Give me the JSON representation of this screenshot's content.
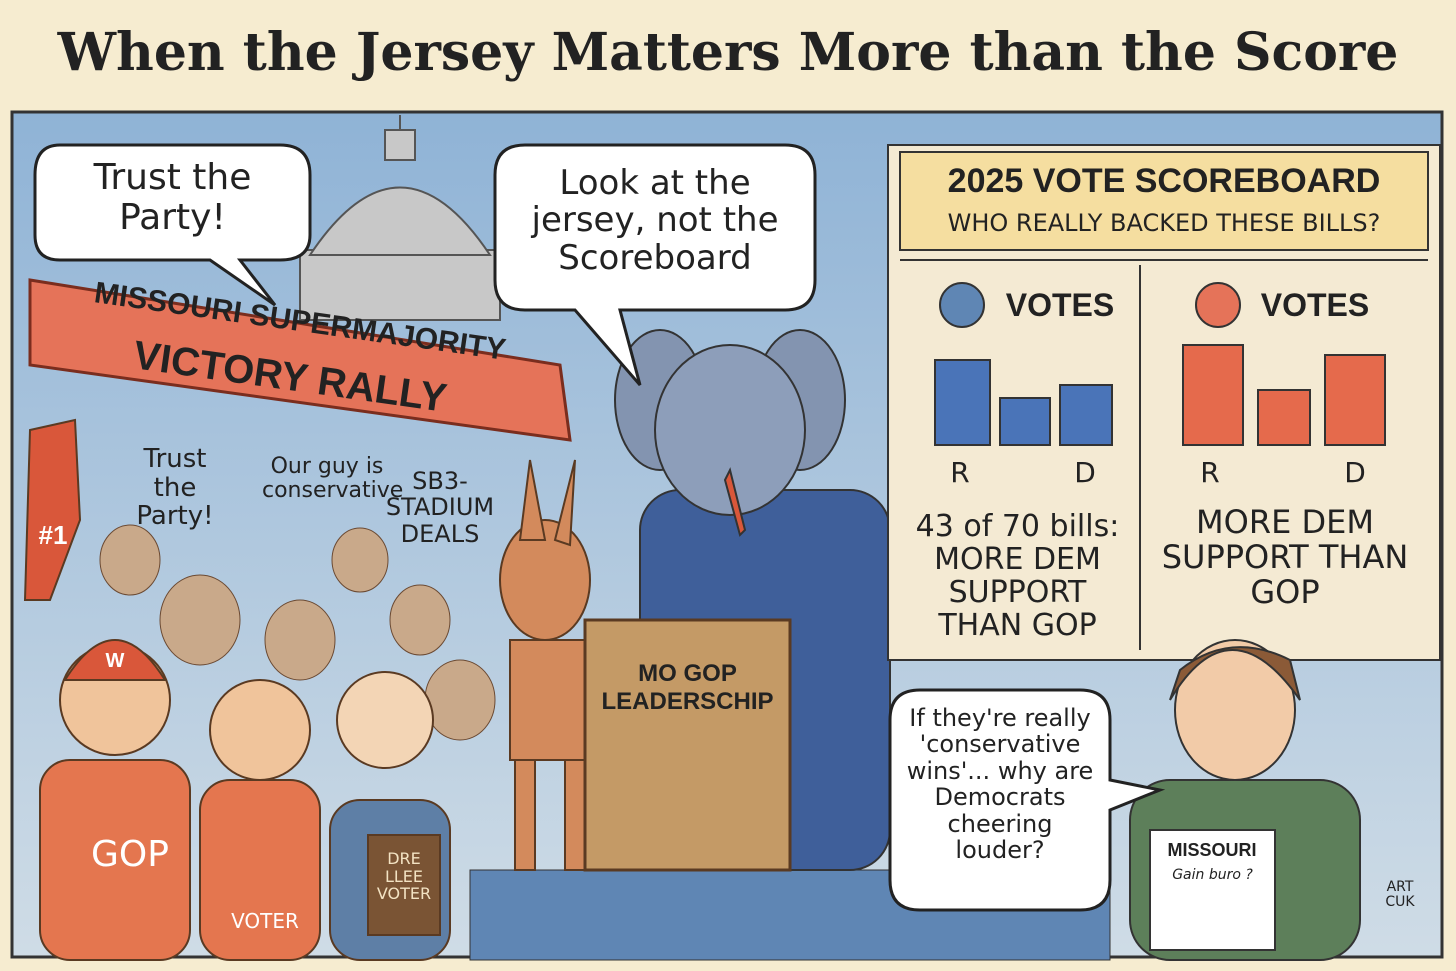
{
  "header": {
    "title": "When the Jersey Matters More than the Score"
  },
  "bubbles": {
    "crowd": "Trust the Party!",
    "elephant": "Look at the jersey, not the Scoreboard",
    "woman": "If they're really 'conservative wins'... why are Democrats cheering louder?"
  },
  "banner": {
    "line1": "MISSOURI SUPERMAJORITY",
    "line2": "VICTORY RALLY"
  },
  "signs": [
    "Trust the Party!",
    "Our guy is conservative",
    "SB3- STADIUM DEALS"
  ],
  "crowd": {
    "finger": "#1",
    "hat": "W",
    "shirt1": "GOP",
    "shirt2": "VOTER",
    "book": "DRE LLEE VOTER"
  },
  "podium": {
    "label": "MO GOP LEADERSCHIP"
  },
  "scoreboard": {
    "title": "2025 VOTE SCOREBOARD",
    "subtitle": "WHO REALLY BACKED THESE BILLS?",
    "left": {
      "heading": "VOTES",
      "labels": [
        "R",
        "D"
      ],
      "note": "43 of 70 bills: MORE DEM SUPPORT THAN GOP"
    },
    "right": {
      "heading": "VOTES",
      "labels": [
        "R",
        "D"
      ],
      "note": "MORE DEM SUPPORT THAN GOP"
    }
  },
  "paper": {
    "title": "MISSOURI",
    "line": "Gain buro ?"
  },
  "signature": "ART CUK"
}
